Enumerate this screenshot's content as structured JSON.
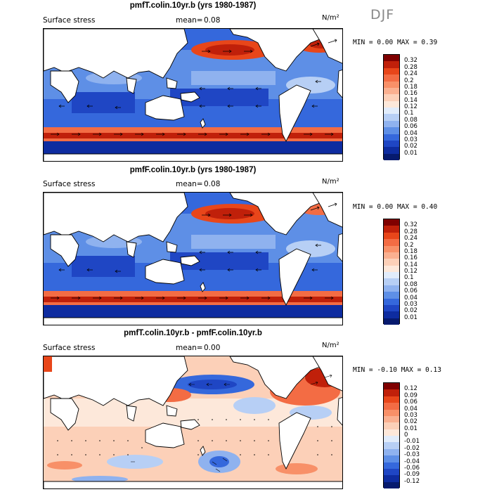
{
  "season": "DJF",
  "panels": [
    {
      "title": "pmfT.colin.10yr.b (yrs 1980-1987)",
      "variable": "Surface stress",
      "mean_label": "mean=",
      "mean_value": "0.08",
      "units": "N/m²",
      "min_label": "MIN =",
      "min_value": "0.00",
      "max_label": "MAX =",
      "max_value": "0.39",
      "levels": [
        "0.32",
        "0.28",
        "0.24",
        "0.2",
        "0.18",
        "0.16",
        "0.14",
        "0.12",
        "0.1",
        "0.08",
        "0.06",
        "0.04",
        "0.03",
        "0.02",
        "0.01"
      ],
      "colors": [
        "#7f0000",
        "#c0200a",
        "#e8461a",
        "#f36c44",
        "#f89068",
        "#fab090",
        "#fcd0b8",
        "#fde8da",
        "#e1ecfb",
        "#b7cff5",
        "#8fb2ef",
        "#5e8fe6",
        "#3568dc",
        "#1f46c4",
        "#0e2ca0",
        "#061a6e"
      ]
    },
    {
      "title": "pmfF.colin.10yr.b (yrs 1980-1987)",
      "variable": "Surface stress",
      "mean_label": "mean=",
      "mean_value": "0.08",
      "units": "N/m²",
      "min_label": "MIN =",
      "min_value": "0.00",
      "max_label": "MAX =",
      "max_value": "0.40",
      "levels": [
        "0.32",
        "0.28",
        "0.24",
        "0.2",
        "0.18",
        "0.16",
        "0.14",
        "0.12",
        "0.1",
        "0.08",
        "0.06",
        "0.04",
        "0.03",
        "0.02",
        "0.01"
      ],
      "colors": [
        "#7f0000",
        "#c0200a",
        "#e8461a",
        "#f36c44",
        "#f89068",
        "#fab090",
        "#fcd0b8",
        "#fde8da",
        "#e1ecfb",
        "#b7cff5",
        "#8fb2ef",
        "#5e8fe6",
        "#3568dc",
        "#1f46c4",
        "#0e2ca0",
        "#061a6e"
      ]
    },
    {
      "title": "pmfT.colin.10yr.b - pmfF.colin.10yr.b",
      "variable": "Surface stress",
      "mean_label": "mean=",
      "mean_value": "0.00",
      "units": "N/m²",
      "min_label": "MIN =",
      "min_value": "-0.10",
      "max_label": "MAX =",
      "max_value": "0.13",
      "levels": [
        "0.12",
        "0.09",
        "0.06",
        "0.04",
        "0.03",
        "0.02",
        "0.01",
        "0",
        "-0.01",
        "-0.02",
        "-0.03",
        "-0.04",
        "-0.06",
        "-0.09",
        "-0.12"
      ],
      "colors": [
        "#7f0000",
        "#c0200a",
        "#e8461a",
        "#f36c44",
        "#f89068",
        "#fab090",
        "#fcd0b8",
        "#fde8da",
        "#e1ecfb",
        "#b7cff5",
        "#8fb2ef",
        "#5e8fe6",
        "#3568dc",
        "#1f46c4",
        "#0e2ca0",
        "#061a6e"
      ]
    }
  ]
}
